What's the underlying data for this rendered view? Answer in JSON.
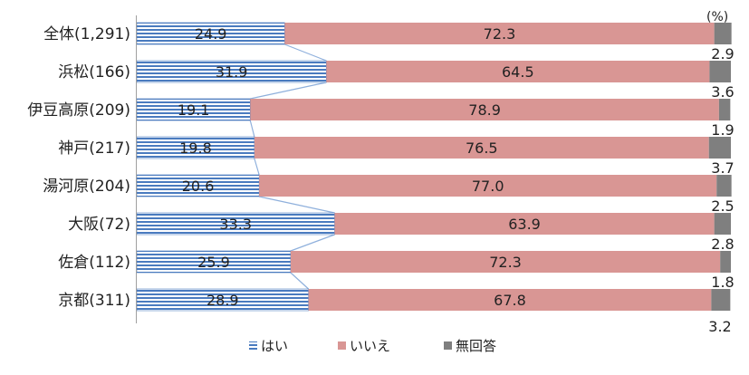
{
  "chart_data": {
    "type": "bar",
    "orientation": "horizontal",
    "stacked": "100%",
    "unit_label": "(%)",
    "categories": [
      "全体(1,291)",
      "浜松(166)",
      "伊豆高原(209)",
      "神戸(217)",
      "湯河原(204)",
      "大阪(72)",
      "佐倉(112)",
      "京都(311)"
    ],
    "series": [
      {
        "name": "はい",
        "values": [
          24.9,
          31.9,
          19.1,
          19.8,
          20.6,
          33.3,
          25.9,
          28.9
        ],
        "color": "#4a7bbf",
        "pattern": "horizontal-stripes"
      },
      {
        "name": "いいえ",
        "values": [
          72.3,
          64.5,
          78.9,
          76.5,
          77.0,
          63.9,
          72.3,
          67.8
        ],
        "color": "#d99694"
      },
      {
        "name": "無回答",
        "values": [
          2.9,
          3.6,
          1.9,
          3.7,
          2.5,
          2.8,
          1.8,
          3.2
        ],
        "color": "#7f7f7f"
      }
    ],
    "xlim": [
      0,
      100
    ],
    "legend_position": "bottom-center",
    "series_connector_lines": true
  }
}
